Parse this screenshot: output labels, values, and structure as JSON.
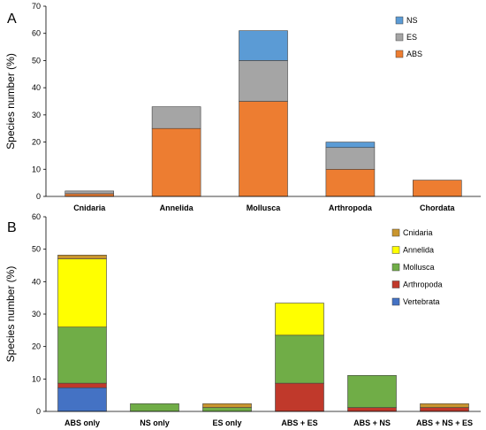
{
  "chart_data": [
    {
      "panel_label": "A",
      "type": "bar",
      "stacked": true,
      "categories": [
        "Cnidaria",
        "Annelida",
        "Mollusca",
        "Arthropoda",
        "Chordata"
      ],
      "series": [
        {
          "name": "ABS",
          "color": "#ED7D31",
          "values": [
            1,
            25,
            35,
            10,
            6
          ]
        },
        {
          "name": "ES",
          "color": "#A5A5A5",
          "values": [
            1,
            8,
            15,
            8,
            0
          ]
        },
        {
          "name": "NS",
          "color": "#5B9BD5",
          "values": [
            0,
            0,
            11,
            2,
            0
          ]
        }
      ],
      "legend_order": [
        "NS",
        "ES",
        "ABS"
      ],
      "legend_position": "top-right",
      "ylabel": "Species number (%)",
      "ylim": [
        0,
        70
      ],
      "yticks": [
        0,
        10,
        20,
        30,
        40,
        50,
        60,
        70
      ],
      "grid": false
    },
    {
      "panel_label": "B",
      "type": "bar",
      "stacked": true,
      "categories": [
        "ABS only",
        "NS only",
        "ES only",
        "ABS + ES",
        "ABS + NS",
        "ABS + NS + ES"
      ],
      "series": [
        {
          "name": "Vertebrata",
          "color": "#4472C4",
          "values": [
            7.3,
            0,
            0,
            0,
            0,
            0
          ]
        },
        {
          "name": "Arthropoda",
          "color": "#C0392B",
          "values": [
            1.4,
            0,
            0,
            8.7,
            1.2,
            1.2
          ]
        },
        {
          "name": "Mollusca",
          "color": "#70AD47",
          "values": [
            17.3,
            2.4,
            1.2,
            14.8,
            9.9,
            0
          ]
        },
        {
          "name": "Annelida",
          "color": "#FFFF00",
          "values": [
            21,
            0,
            0,
            9.9,
            0,
            0
          ]
        },
        {
          "name": "Cnidaria",
          "color": "#C9952E",
          "values": [
            1.2,
            0,
            1.2,
            0,
            0,
            1.2
          ]
        }
      ],
      "legend_order": [
        "Cnidaria",
        "Annelida",
        "Mollusca",
        "Arthropoda",
        "Vertebrata"
      ],
      "legend_position": "top-right",
      "ylabel": "Species number (%)",
      "ylim": [
        0,
        60
      ],
      "yticks": [
        0,
        10,
        20,
        30,
        40,
        50,
        60
      ],
      "grid": false
    }
  ]
}
